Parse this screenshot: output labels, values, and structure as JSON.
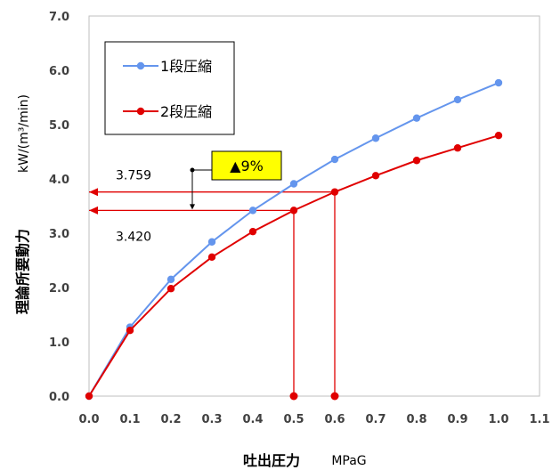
{
  "chart_data": {
    "type": "line",
    "xlabel": "吐出圧力",
    "xunit": "MPaG",
    "ylabel": "理論所要動力",
    "yunit": "kW/(m³/min)",
    "xlim": [
      0.0,
      1.1
    ],
    "ylim": [
      0.0,
      7.0
    ],
    "x_ticks": [
      "0.0",
      "0.1",
      "0.2",
      "0.3",
      "0.4",
      "0.5",
      "0.6",
      "0.7",
      "0.8",
      "0.9",
      "1.0",
      "1.1"
    ],
    "y_ticks": [
      "0.0",
      "1.0",
      "2.0",
      "3.0",
      "4.0",
      "5.0",
      "6.0",
      "7.0"
    ],
    "grid": false,
    "legend_position": "top-left",
    "x": [
      0.0,
      0.1,
      0.2,
      0.3,
      0.4,
      0.5,
      0.6,
      0.7,
      0.8,
      0.9,
      1.0
    ],
    "series": [
      {
        "name": "1段圧縮",
        "color": "#6495ED",
        "values": [
          0.0,
          1.27,
          2.15,
          2.84,
          3.42,
          3.91,
          4.36,
          4.75,
          5.12,
          5.46,
          5.77
        ]
      },
      {
        "name": "2段圧縮",
        "color": "#E00000",
        "values": [
          0.0,
          1.21,
          1.98,
          2.56,
          3.03,
          3.42,
          3.76,
          4.06,
          4.34,
          4.57,
          4.8
        ]
      }
    ],
    "annotations": {
      "upper_value": "3.759",
      "lower_value": "3.420",
      "reduction_label": "▲9%",
      "reduction_label_bg": "#FFFF00",
      "upper_level": 3.759,
      "lower_level": 3.42,
      "upper_x": 0.6,
      "lower_x": 0.5,
      "guide_color": "#E00000"
    }
  }
}
